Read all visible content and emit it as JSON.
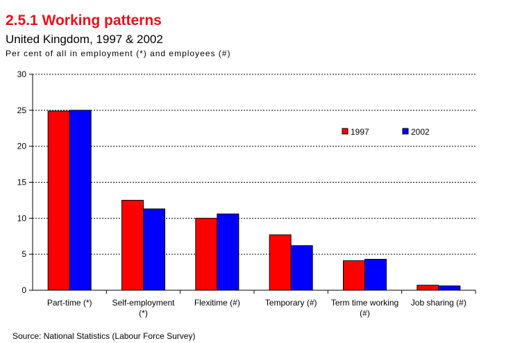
{
  "header": {
    "title": "2.5.1 Working patterns",
    "subtitle": "United Kingdom, 1997 & 2002",
    "units": "Per cent of all in employment (*) and employees (#)"
  },
  "footer": {
    "source": "Source: National Statistics (Labour Force Survey)"
  },
  "colors": {
    "series_1997": "#ff0000",
    "series_2002": "#0000ff"
  },
  "chart_data": {
    "type": "bar",
    "title": "2.5.1 Working patterns",
    "subtitle": "United Kingdom, 1997 & 2002",
    "xlabel": "",
    "ylabel": "Per cent of all in employment (*) and employees (#)",
    "ylim": [
      0,
      30
    ],
    "yticks": [
      0,
      5,
      10,
      15,
      20,
      25,
      30
    ],
    "grid": true,
    "legend_position": "top-right",
    "categories": [
      [
        "Part-time (*)"
      ],
      [
        "Self-employment",
        "(*)"
      ],
      [
        "Flexitime (#)"
      ],
      [
        "Temporary (#)"
      ],
      [
        "Term time working",
        "(#)"
      ],
      [
        "Job sharing (#)"
      ]
    ],
    "series": [
      {
        "name": "1997",
        "color": "#ff0000",
        "values": [
          24.9,
          12.5,
          10.0,
          7.7,
          4.1,
          0.7
        ]
      },
      {
        "name": "2002",
        "color": "#0000ff",
        "values": [
          25.0,
          11.3,
          10.6,
          6.2,
          4.3,
          0.6
        ]
      }
    ]
  }
}
